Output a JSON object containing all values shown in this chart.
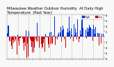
{
  "n_bars": 365,
  "seed": 42,
  "blue_color": "#0033cc",
  "red_color": "#cc0000",
  "background_color": "#f8f8f8",
  "grid_color": "#bbbbbb",
  "ylim": [
    -65,
    65
  ],
  "n_gridlines": 9,
  "legend_blue_label": "High",
  "legend_red_label": "Low",
  "title_fontsize": 3.8,
  "tick_fontsize": 2.8,
  "bar_width": 0.9,
  "ytick_right_labels": [
    "8",
    "6",
    "4",
    "2",
    "",
    "2",
    "4",
    "6",
    "8"
  ],
  "ytick_positions": [
    64,
    48,
    32,
    16,
    0,
    -16,
    -32,
    -48,
    -64
  ]
}
